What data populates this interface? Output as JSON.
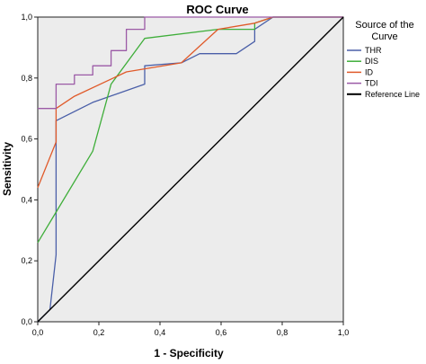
{
  "chart_data": {
    "type": "line",
    "title": "ROC Curve",
    "xlabel": "1 - Specificity",
    "ylabel": "Sensitivity",
    "xlim": [
      0,
      1
    ],
    "ylim": [
      0,
      1
    ],
    "x_ticks": [
      "0,0",
      "0,2",
      "0,4",
      "0,6",
      "0,8",
      "1,0"
    ],
    "y_ticks": [
      "0,0",
      "0,2",
      "0,4",
      "0,6",
      "0,8",
      "1,0"
    ],
    "grid": false,
    "legend_position": "right",
    "legend_title": "Source of the Curve",
    "background": "#ececec",
    "series": [
      {
        "name": "THR",
        "color": "#4a5fa8",
        "points": [
          [
            0,
            0
          ],
          [
            0.04,
            0.04
          ],
          [
            0.06,
            0.22
          ],
          [
            0.06,
            0.66
          ],
          [
            0.18,
            0.72
          ],
          [
            0.35,
            0.78
          ],
          [
            0.35,
            0.84
          ],
          [
            0.47,
            0.85
          ],
          [
            0.53,
            0.88
          ],
          [
            0.65,
            0.88
          ],
          [
            0.71,
            0.92
          ],
          [
            0.71,
            0.96
          ],
          [
            0.77,
            1.0
          ],
          [
            1.0,
            1.0
          ]
        ]
      },
      {
        "name": "DIS",
        "color": "#3fae3a",
        "points": [
          [
            0,
            0.26
          ],
          [
            0.06,
            0.36
          ],
          [
            0.18,
            0.56
          ],
          [
            0.24,
            0.78
          ],
          [
            0.35,
            0.93
          ],
          [
            0.59,
            0.96
          ],
          [
            0.71,
            0.96
          ],
          [
            0.71,
            0.98
          ],
          [
            0.77,
            1.0
          ],
          [
            1.0,
            1.0
          ]
        ]
      },
      {
        "name": "ID",
        "color": "#e05a2a",
        "points": [
          [
            0,
            0.44
          ],
          [
            0.06,
            0.59
          ],
          [
            0.06,
            0.7
          ],
          [
            0.12,
            0.74
          ],
          [
            0.29,
            0.82
          ],
          [
            0.35,
            0.83
          ],
          [
            0.47,
            0.85
          ],
          [
            0.59,
            0.96
          ],
          [
            0.71,
            0.98
          ],
          [
            0.77,
            1.0
          ],
          [
            1.0,
            1.0
          ]
        ]
      },
      {
        "name": "TDI",
        "color": "#9b5aa6",
        "points": [
          [
            0,
            0.7
          ],
          [
            0.06,
            0.7
          ],
          [
            0.06,
            0.78
          ],
          [
            0.12,
            0.78
          ],
          [
            0.12,
            0.81
          ],
          [
            0.18,
            0.81
          ],
          [
            0.18,
            0.84
          ],
          [
            0.24,
            0.84
          ],
          [
            0.24,
            0.89
          ],
          [
            0.29,
            0.89
          ],
          [
            0.29,
            0.96
          ],
          [
            0.35,
            0.96
          ],
          [
            0.35,
            1.0
          ],
          [
            0.47,
            1.0
          ],
          [
            1.0,
            1.0
          ]
        ]
      },
      {
        "name": "Reference Line",
        "color": "#000000",
        "points": [
          [
            0,
            0
          ],
          [
            1,
            1
          ]
        ]
      }
    ]
  }
}
